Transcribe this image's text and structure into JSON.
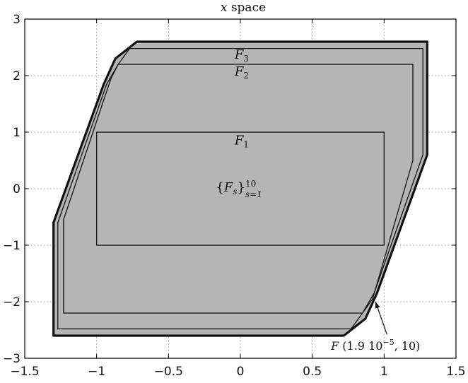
{
  "chart_data": {
    "type": "area",
    "title_var": "x",
    "title_rest": " space",
    "xlim": [
      -1.5,
      1.5
    ],
    "ylim": [
      -3,
      3
    ],
    "xticks": [
      -1.5,
      -1,
      -0.5,
      0,
      0.5,
      1,
      1.5
    ],
    "yticks": [
      -3,
      -2,
      -1,
      0,
      1,
      2,
      3
    ],
    "xtick_labels": [
      "−1.5",
      "−1",
      "−0.5",
      "0",
      "0.5",
      "1",
      "1.5"
    ],
    "ytick_labels": [
      "−3",
      "−2",
      "−1",
      "0",
      "1",
      "2",
      "3"
    ],
    "grid": true,
    "fill_color": "#b5b5b5",
    "regions": [
      {
        "name": "F",
        "x": [
          -1.3,
          -1.3,
          -0.95,
          -0.87,
          -0.72,
          1.3,
          1.3,
          0.95,
          0.87,
          0.72,
          -1.3
        ],
        "y": [
          -2.6,
          -0.6,
          1.85,
          2.3,
          2.6,
          2.6,
          0.6,
          -1.85,
          -2.3,
          -2.6,
          -2.6
        ]
      },
      {
        "name": "F3",
        "x": [
          -1.27,
          -1.27,
          -0.93,
          -0.85,
          -0.77,
          1.27,
          1.27,
          0.93,
          0.85,
          0.77,
          -1.27
        ],
        "y": [
          -2.48,
          -0.6,
          1.85,
          2.2,
          2.48,
          2.48,
          0.6,
          -1.85,
          -2.2,
          -2.48,
          -2.48
        ]
      },
      {
        "name": "F2",
        "x": [
          -1.23,
          -1.23,
          -0.9,
          -0.85,
          1.2,
          1.2,
          0.92,
          0.85,
          -1.23
        ],
        "y": [
          -2.2,
          -0.55,
          1.95,
          2.2,
          2.2,
          0.5,
          -1.95,
          -2.2,
          -2.2
        ]
      },
      {
        "name": "F1",
        "x": [
          -1.0,
          1.0,
          1.0,
          -1.0,
          -1.0
        ],
        "y": [
          -1.0,
          -1.0,
          1.0,
          1.0,
          -1.0
        ]
      }
    ],
    "labels": [
      {
        "var": "F",
        "sub": "3",
        "x": -0.04,
        "y": 2.3
      },
      {
        "var": "F",
        "sub": "2",
        "x": -0.04,
        "y": 2.0
      },
      {
        "var": "F",
        "sub": "1",
        "x": -0.04,
        "y": 0.78
      }
    ],
    "sequence_label": {
      "open": "{",
      "var": "F",
      "idx": "s",
      "close": "}",
      "lower": "s=1",
      "upper": "10",
      "x": -0.17,
      "y": -0.05
    },
    "annotation": {
      "prefix": "F",
      "text_mid": " (1.9 10",
      "exponent": "−5",
      "text_end": ", 10)",
      "text_x": 0.63,
      "text_y": -2.85,
      "arrow_from": [
        1.02,
        -2.58
      ],
      "arrow_to": [
        0.94,
        -2.0
      ]
    }
  }
}
